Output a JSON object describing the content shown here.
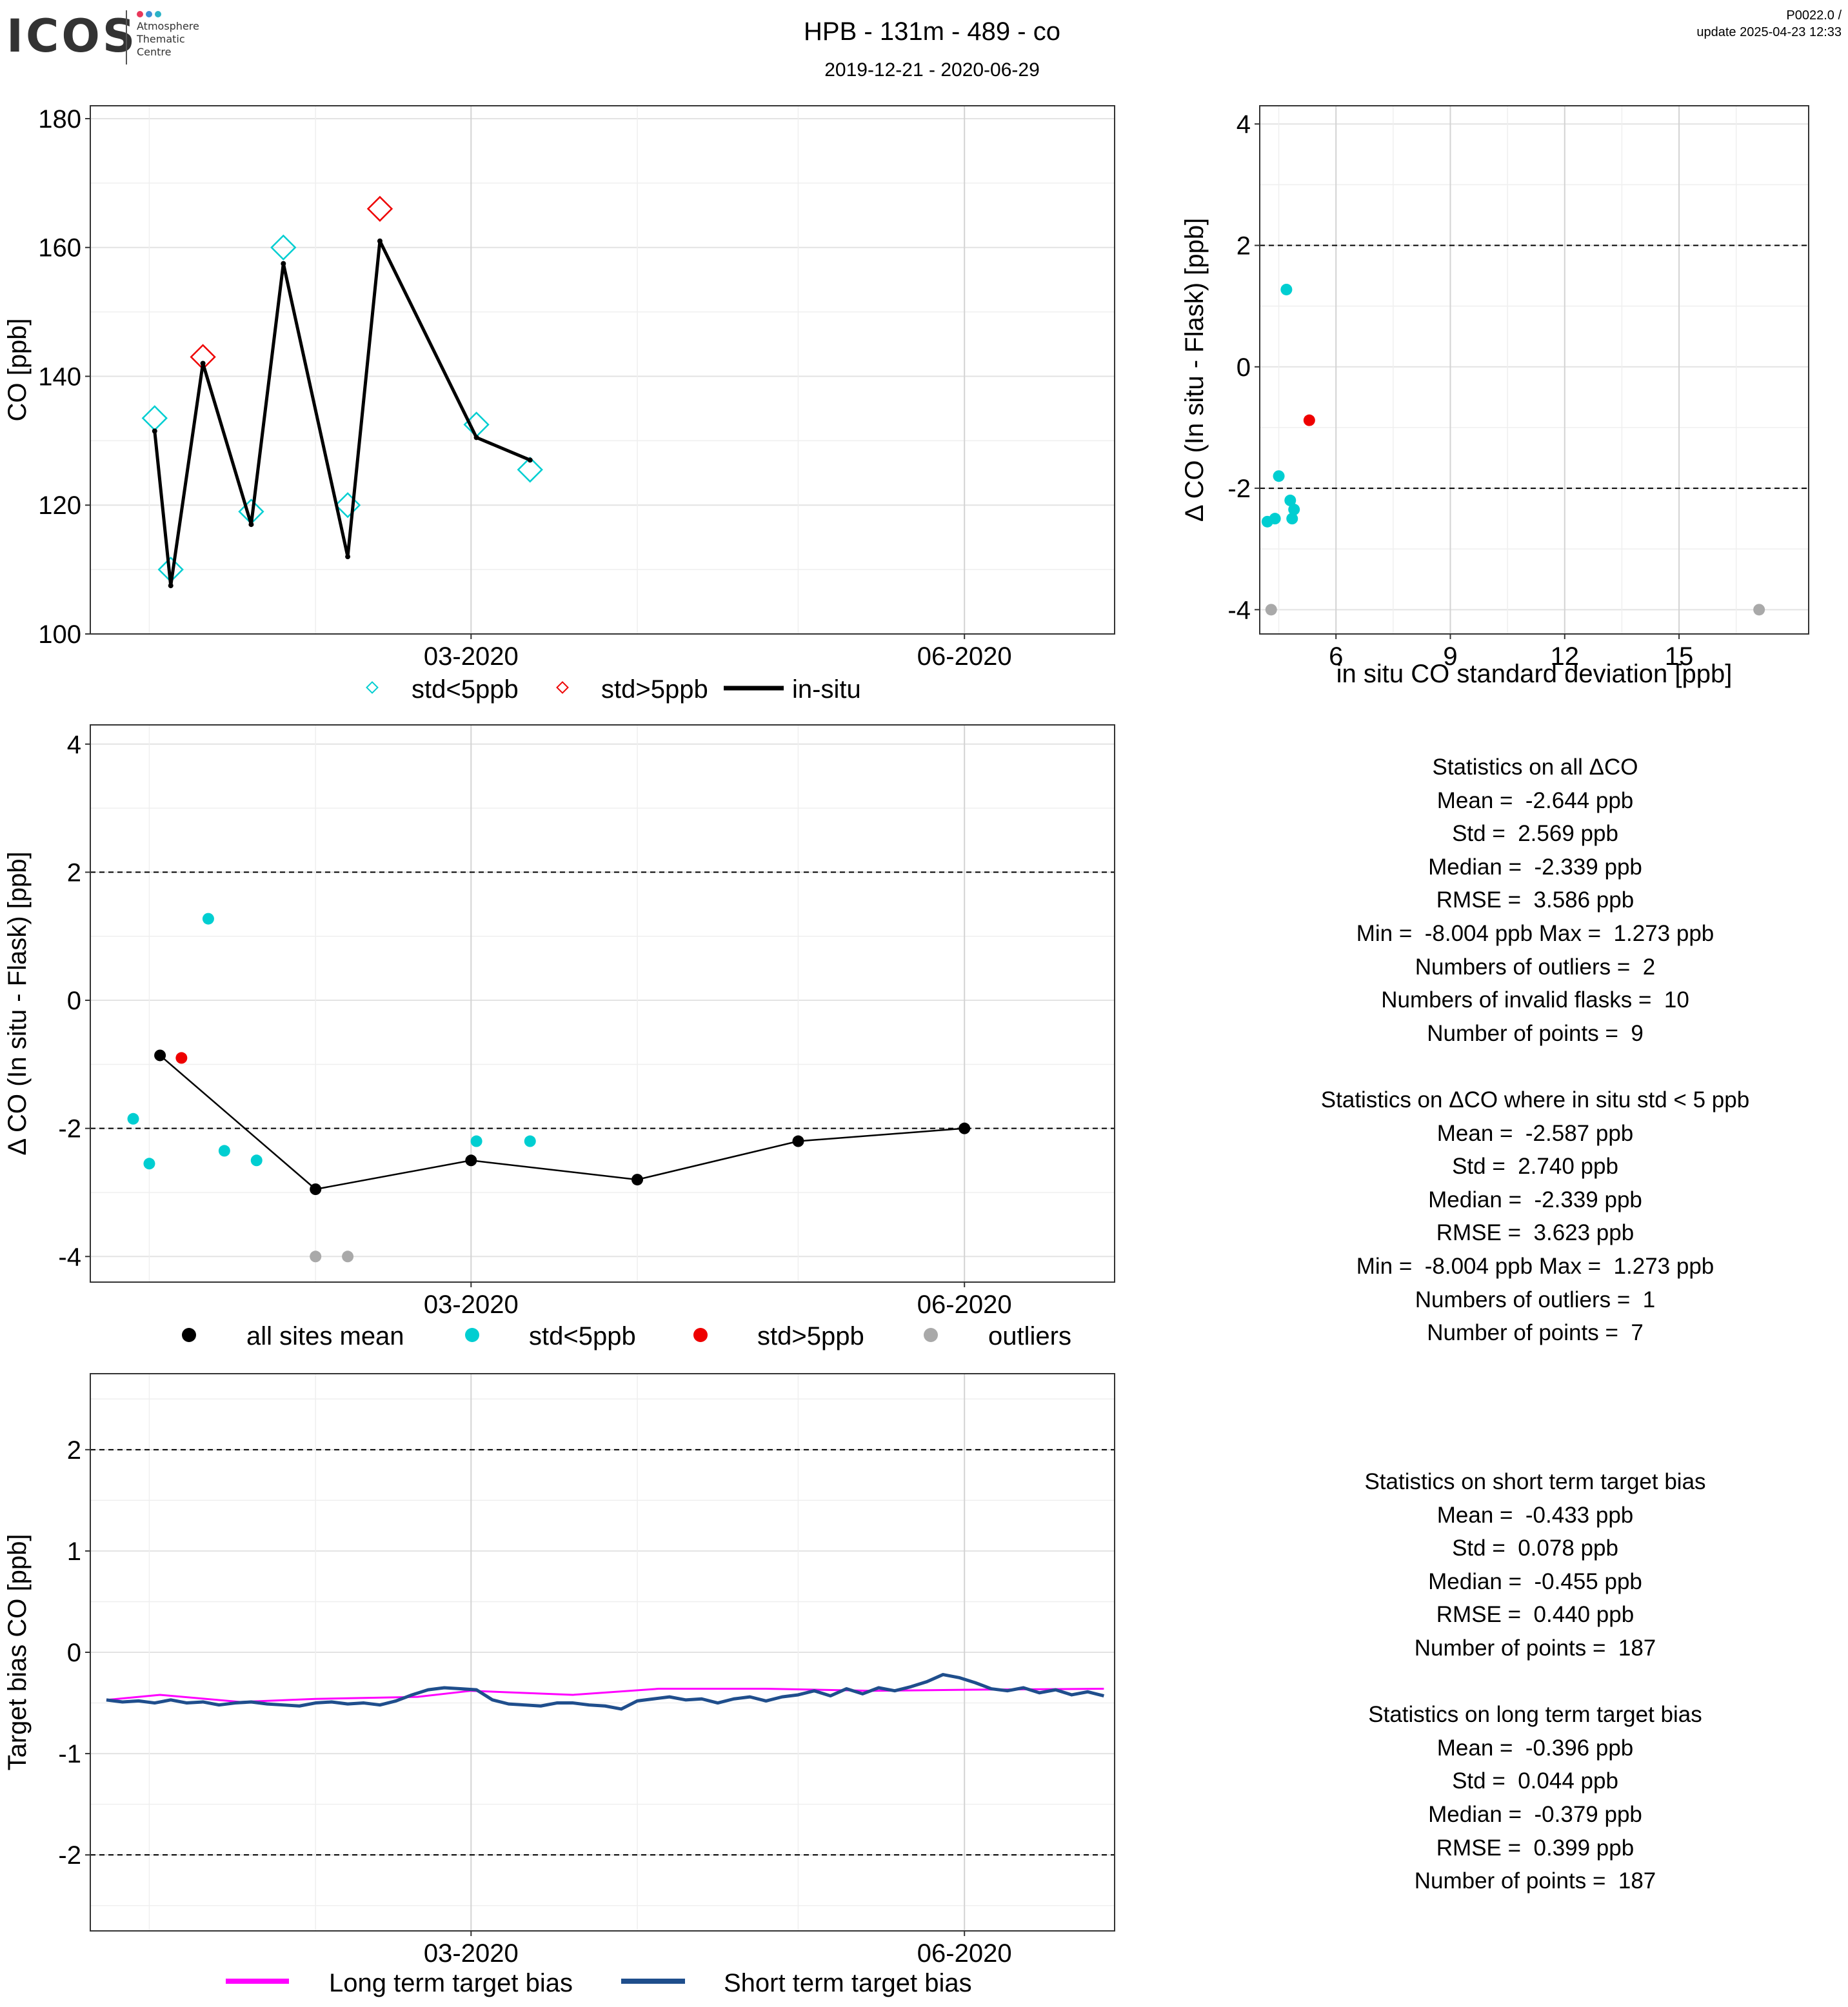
{
  "header": {
    "logo_text": "ICOS",
    "logo_sub": [
      "Atmosphere",
      "Thematic",
      "Centre"
    ],
    "logo_dot_colors": [
      "#e8375a",
      "#3b8fd6",
      "#2bb3c7"
    ],
    "title": "HPB - 131m - 489 - co",
    "subtitle": "2019-12-21 - 2020-06-29",
    "version": "P0022.0 /",
    "update": "update  2025-04-23 12:33"
  },
  "colors": {
    "std_lt5": "#00CED1",
    "std_gt5": "#ee0000",
    "outlier": "#a9a9a9",
    "mean": "#000000",
    "insitu": "#000000",
    "long_bias": "#ff00ff",
    "short_bias": "#1f4e8c"
  },
  "legends": {
    "top": [
      "std<5ppb",
      "std>5ppb",
      "in-situ"
    ],
    "middle": [
      "all sites mean",
      "std<5ppb",
      "std>5ppb",
      "outliers"
    ],
    "bottom": [
      "Long term target bias",
      "Short term target bias"
    ]
  },
  "stats_all": [
    "Statistics on all ΔCO",
    "Mean =  -2.644 ppb",
    "Std =  2.569 ppb",
    "Median =  -2.339 ppb",
    "RMSE =  3.586 ppb",
    "Min =  -8.004 ppb Max =  1.273 ppb",
    "Numbers of outliers =  2",
    "Numbers of invalid flasks =  10",
    "Number of points =  9",
    "",
    "Statistics on ΔCO where in situ std < 5 ppb",
    "Mean =  -2.587 ppb",
    "Std =  2.740 ppb",
    "Median =  -2.339 ppb",
    "RMSE =  3.623 ppb",
    "Min =  -8.004 ppb Max =  1.273 ppb",
    "Numbers of outliers =  1",
    "Number of points =  7"
  ],
  "stats_bias": [
    "Statistics on short term target bias",
    "Mean =  -0.433 ppb",
    "Std =  0.078 ppb",
    "Median =  -0.455 ppb",
    "RMSE =  0.440 ppb",
    "Number of points =  187",
    "",
    "Statistics on long term target bias",
    "Mean =  -0.396 ppb",
    "Std =  0.044 ppb",
    "Median =  -0.379 ppb",
    "RMSE =  0.399 ppb",
    "Number of points =  187"
  ],
  "chart_data": [
    {
      "id": "co_timeseries",
      "type": "line",
      "title": "",
      "xlabel": "",
      "ylabel": "CO [ppb]",
      "xlim": [
        "2019-12-21",
        "2020-06-29"
      ],
      "ylim": [
        100,
        182
      ],
      "x_ticks": [
        "03-2020",
        "06-2020"
      ],
      "y_ticks": [
        100,
        120,
        140,
        160,
        180
      ],
      "grid": true,
      "legend": "bottom",
      "series": [
        {
          "name": "std<5ppb",
          "marker": "diamond-open",
          "x": [
            "2020-01-02",
            "2020-01-05",
            "2020-01-20",
            "2020-01-26",
            "2020-02-07",
            "2020-03-02",
            "2020-03-12"
          ],
          "y": [
            133.5,
            110,
            119,
            160,
            120,
            132.5,
            125.5
          ]
        },
        {
          "name": "std>5ppb",
          "marker": "diamond-open",
          "x": [
            "2020-01-11",
            "2020-02-13"
          ],
          "y": [
            143,
            166
          ]
        },
        {
          "name": "in-situ",
          "marker": "line",
          "x": [
            "2020-01-02",
            "2020-01-05",
            "2020-01-11",
            "2020-01-20",
            "2020-01-26",
            "2020-02-07",
            "2020-02-13",
            "2020-03-02",
            "2020-03-12"
          ],
          "y": [
            131.5,
            107.5,
            142,
            117,
            157.5,
            112,
            161,
            130.5,
            127
          ]
        }
      ]
    },
    {
      "id": "delta_vs_std",
      "type": "scatter",
      "title": "",
      "xlabel": "in situ CO standard deviation [ppb]",
      "ylabel": "Δ CO (In situ - Flask) [ppb]",
      "xlim": [
        4.0,
        18.4
      ],
      "ylim": [
        -4.4,
        4.3
      ],
      "x_ticks": [
        6,
        9,
        12,
        15
      ],
      "y_ticks": [
        -4,
        -2,
        0,
        2,
        4
      ],
      "hlines": [
        -2,
        2
      ],
      "grid": true,
      "series": [
        {
          "name": "std<5ppb",
          "x": [
            4.7,
            4.8,
            4.5,
            4.9,
            4.85,
            4.2,
            4.4
          ],
          "y": [
            1.273,
            -2.2,
            -1.8,
            -2.35,
            -2.5,
            -2.55,
            -2.5
          ]
        },
        {
          "name": "std>5ppb",
          "x": [
            5.3
          ],
          "y": [
            -0.88
          ]
        },
        {
          "name": "outliers",
          "x": [
            4.3,
            17.1
          ],
          "y": [
            -4.0,
            -4.0
          ]
        }
      ]
    },
    {
      "id": "delta_timeseries",
      "type": "scatter",
      "title": "",
      "xlabel": "",
      "ylabel": "Δ CO (In situ - Flask) [ppb]",
      "xlim": [
        "2019-12-21",
        "2020-06-29"
      ],
      "ylim": [
        -4.4,
        4.3
      ],
      "x_ticks": [
        "03-2020",
        "06-2020"
      ],
      "y_ticks": [
        -4,
        -2,
        0,
        2,
        4
      ],
      "hlines": [
        -2,
        2
      ],
      "grid": true,
      "legend": "bottom",
      "series": [
        {
          "name": "all sites mean",
          "line": true,
          "x": [
            "2020-01-03",
            "2020-02-01",
            "2020-03-01",
            "2020-04-01",
            "2020-05-01",
            "2020-06-01"
          ],
          "y": [
            -0.86,
            -2.95,
            -2.5,
            -2.8,
            -2.2,
            -2.0
          ]
        },
        {
          "name": "std<5ppb",
          "x": [
            "2020-01-12",
            "2019-12-29",
            "2020-01-01",
            "2020-01-15",
            "2020-01-21",
            "2020-03-12",
            "2020-03-02"
          ],
          "y": [
            1.273,
            -1.85,
            -2.55,
            -2.35,
            -2.5,
            -2.2,
            -2.2
          ]
        },
        {
          "name": "std>5ppb",
          "x": [
            "2020-01-07"
          ],
          "y": [
            -0.9
          ]
        },
        {
          "name": "outliers",
          "x": [
            "2020-02-01",
            "2020-02-07"
          ],
          "y": [
            -4.0,
            -4.0
          ]
        }
      ]
    },
    {
      "id": "target_bias",
      "type": "line",
      "title": "",
      "xlabel": "",
      "ylabel": "Target bias CO [ppb]",
      "xlim": [
        "2019-12-21",
        "2020-06-29"
      ],
      "ylim": [
        -2.75,
        2.75
      ],
      "x_ticks": [
        "03-2020",
        "06-2020"
      ],
      "y_ticks": [
        -2,
        -1,
        0,
        1,
        2
      ],
      "hlines": [
        -2,
        2
      ],
      "grid": true,
      "legend": "bottom",
      "series": [
        {
          "name": "Long term target bias",
          "x": [
            "2019-12-24",
            "2020-01-03",
            "2020-01-18",
            "2020-02-01",
            "2020-02-20",
            "2020-03-01",
            "2020-03-20",
            "2020-04-05",
            "2020-04-25",
            "2020-05-15",
            "2020-06-01",
            "2020-06-27"
          ],
          "y": [
            -0.47,
            -0.42,
            -0.49,
            -0.46,
            -0.44,
            -0.38,
            -0.42,
            -0.36,
            -0.36,
            -0.38,
            -0.37,
            -0.36
          ]
        },
        {
          "name": "Short term target bias",
          "x": [
            "2019-12-24",
            "2019-12-27",
            "2019-12-30",
            "2020-01-02",
            "2020-01-05",
            "2020-01-08",
            "2020-01-11",
            "2020-01-14",
            "2020-01-17",
            "2020-01-20",
            "2020-01-23",
            "2020-01-26",
            "2020-01-29",
            "2020-02-01",
            "2020-02-04",
            "2020-02-07",
            "2020-02-10",
            "2020-02-13",
            "2020-02-16",
            "2020-02-19",
            "2020-02-22",
            "2020-02-25",
            "2020-02-28",
            "2020-03-02",
            "2020-03-05",
            "2020-03-08",
            "2020-03-11",
            "2020-03-14",
            "2020-03-17",
            "2020-03-20",
            "2020-03-23",
            "2020-03-26",
            "2020-03-29",
            "2020-04-01",
            "2020-04-04",
            "2020-04-07",
            "2020-04-10",
            "2020-04-13",
            "2020-04-16",
            "2020-04-19",
            "2020-04-22",
            "2020-04-25",
            "2020-04-28",
            "2020-05-01",
            "2020-05-04",
            "2020-05-07",
            "2020-05-10",
            "2020-05-13",
            "2020-05-16",
            "2020-05-19",
            "2020-05-22",
            "2020-05-25",
            "2020-05-28",
            "2020-05-31",
            "2020-06-03",
            "2020-06-06",
            "2020-06-09",
            "2020-06-12",
            "2020-06-15",
            "2020-06-18",
            "2020-06-21",
            "2020-06-24",
            "2020-06-27"
          ],
          "y": [
            -0.47,
            -0.49,
            -0.48,
            -0.5,
            -0.47,
            -0.5,
            -0.49,
            -0.52,
            -0.5,
            -0.49,
            -0.51,
            -0.52,
            -0.53,
            -0.5,
            -0.49,
            -0.51,
            -0.5,
            -0.52,
            -0.48,
            -0.42,
            -0.37,
            -0.35,
            -0.36,
            -0.37,
            -0.47,
            -0.51,
            -0.52,
            -0.53,
            -0.5,
            -0.5,
            -0.52,
            -0.53,
            -0.56,
            -0.48,
            -0.46,
            -0.44,
            -0.47,
            -0.46,
            -0.5,
            -0.46,
            -0.44,
            -0.48,
            -0.44,
            -0.42,
            -0.38,
            -0.43,
            -0.36,
            -0.41,
            -0.35,
            -0.38,
            -0.34,
            -0.29,
            -0.22,
            -0.25,
            -0.3,
            -0.36,
            -0.38,
            -0.35,
            -0.4,
            -0.37,
            -0.42,
            -0.39,
            -0.43
          ]
        }
      ]
    }
  ]
}
